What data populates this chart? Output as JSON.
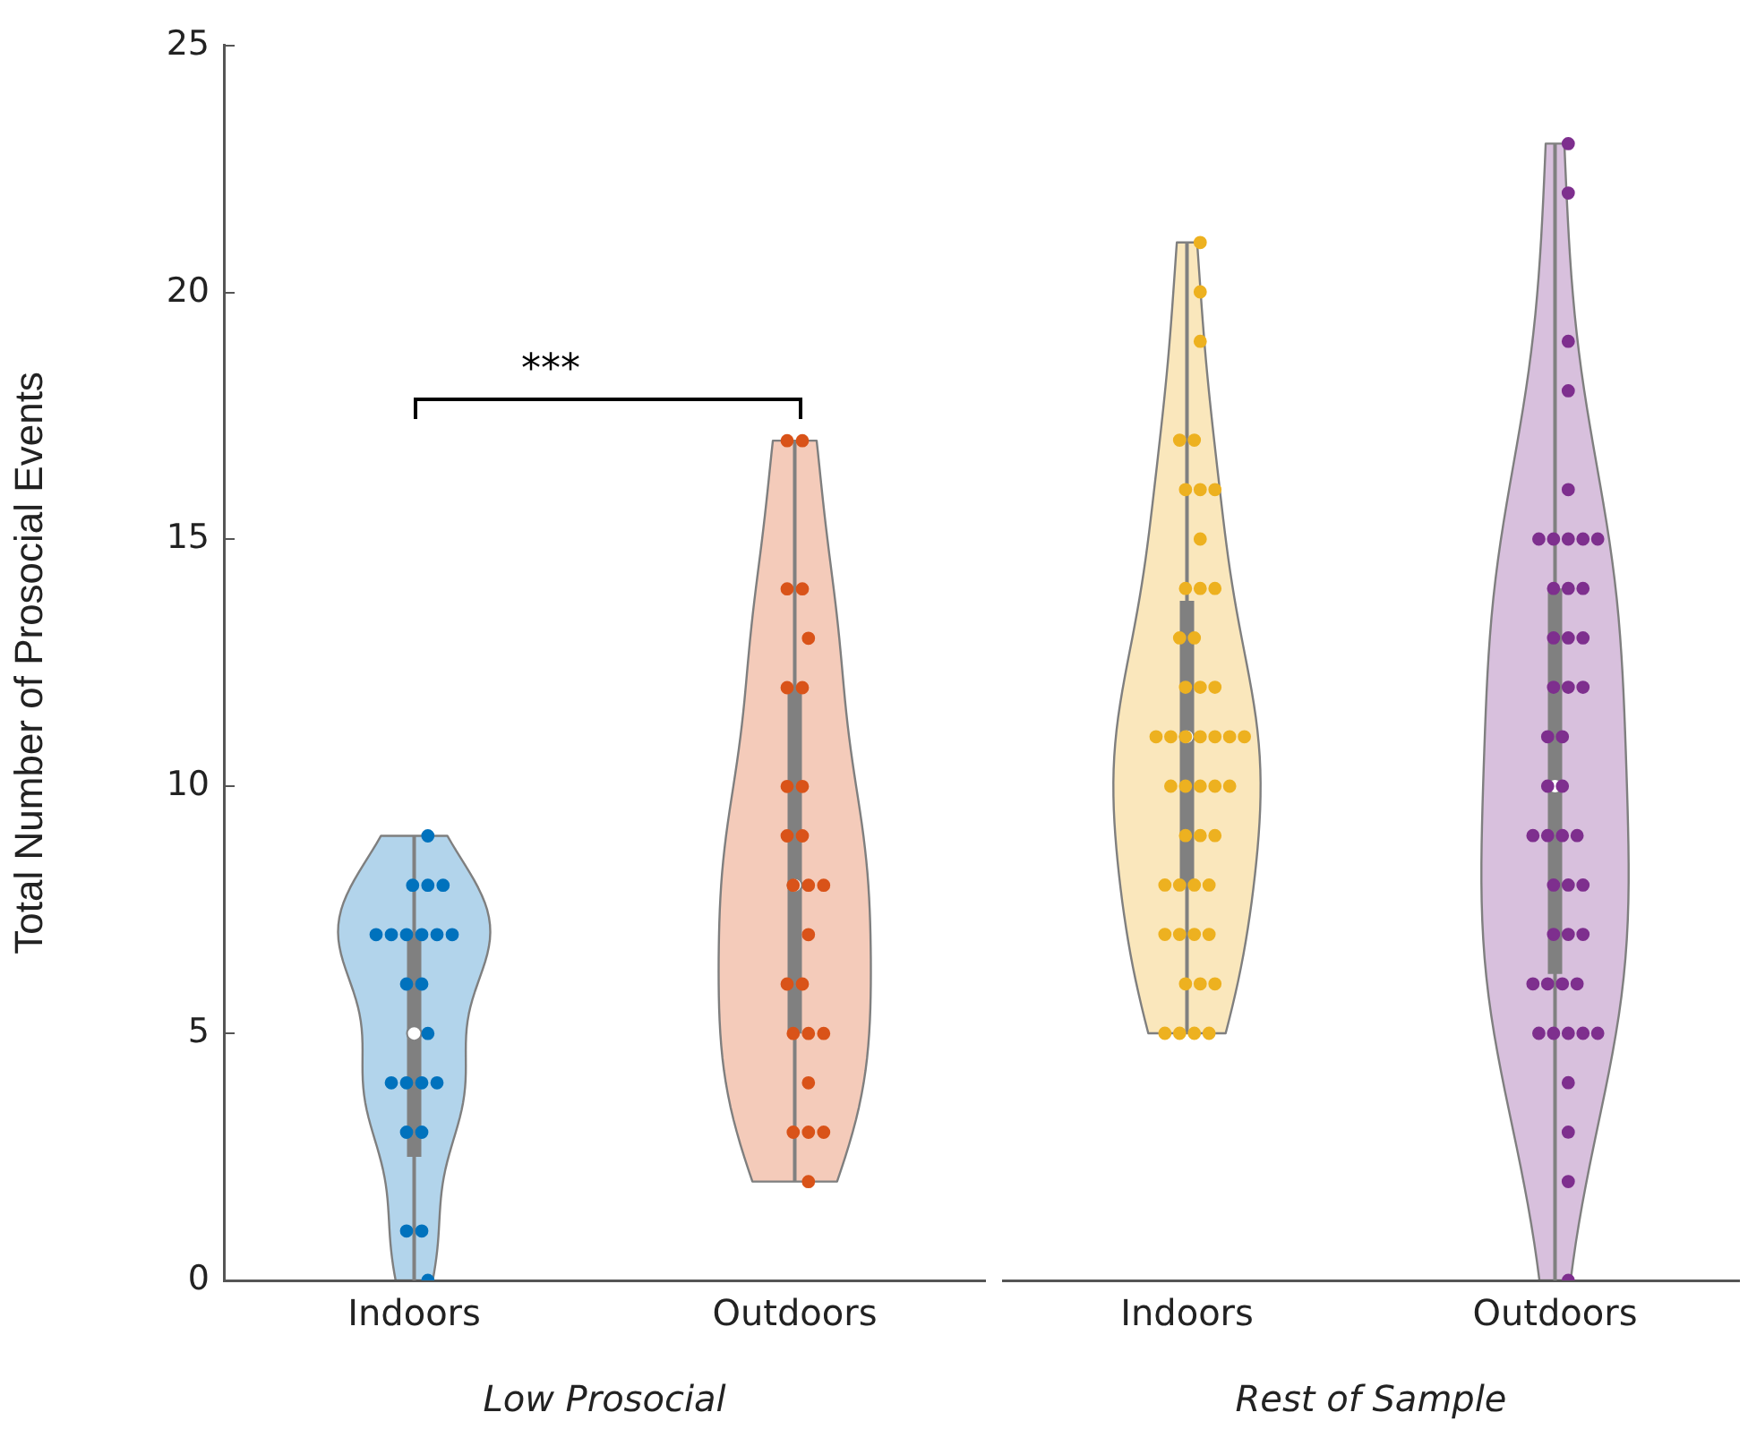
{
  "chart_data": [
    {
      "type": "box",
      "ylabel": "Total Number of Prosocial Events",
      "xlabel": "Low Prosocial",
      "categories": [
        "Indoors",
        "Outdoors"
      ],
      "colors": [
        "#808080",
        "#808080"
      ],
      "boxes": [
        {
          "low": 0,
          "q1": 2.5,
          "median": 5,
          "q3": 7,
          "high": 9
        },
        {
          "low": 2,
          "q1": 5,
          "median": 8,
          "q3": 12,
          "high": 17
        }
      ],
      "series": [
        {
          "type": "scatter",
          "color": "#0072bd",
          "x": [
            "Indoors",
            "Indoors",
            "Indoors",
            "Indoors",
            "Indoors",
            "Indoors",
            "Indoors",
            "Indoors",
            "Indoors",
            "Indoors",
            "Indoors",
            "Indoors",
            "Indoors",
            "Indoors",
            "Indoors",
            "Indoors",
            "Indoors",
            "Indoors",
            "Indoors",
            "Indoors",
            "Indoors",
            "Indoors"
          ],
          "values": [
            9,
            8,
            8,
            8,
            7,
            7,
            7,
            7,
            7,
            7,
            6,
            6,
            5,
            4,
            4,
            4,
            4,
            3,
            3,
            1,
            1,
            0
          ]
        },
        {
          "type": "scatter",
          "color": "#d95319",
          "x": [
            "Outdoors",
            "Outdoors",
            "Outdoors",
            "Outdoors",
            "Outdoors",
            "Outdoors",
            "Outdoors",
            "Outdoors",
            "Outdoors",
            "Outdoors",
            "Outdoors",
            "Outdoors",
            "Outdoors",
            "Outdoors",
            "Outdoors",
            "Outdoors",
            "Outdoors",
            "Outdoors",
            "Outdoors",
            "Outdoors",
            "Outdoors",
            "Outdoors",
            "Outdoors",
            "Outdoors",
            "Outdoors"
          ],
          "values": [
            17,
            17,
            14,
            14,
            13,
            12,
            12,
            10,
            10,
            9,
            9,
            8,
            8,
            8,
            7,
            6,
            6,
            5,
            5,
            5,
            4,
            3,
            3,
            3,
            2
          ]
        }
      ],
      "ylim": [
        0,
        25
      ],
      "yticks": [
        0,
        5,
        10,
        15,
        20,
        25
      ],
      "grid": false,
      "legend": false,
      "marker": "circle",
      "annotations": [
        "***"
      ]
    },
    {
      "type": "box",
      "xlabel": "Rest of Sample",
      "categories": [
        "Indoors",
        "Outdoors"
      ],
      "colors": [
        "#808080",
        "#808080"
      ],
      "boxes": [
        {
          "low": 5,
          "q1": 8,
          "median": 11,
          "q3": 13.75,
          "high": 21
        },
        {
          "low": 0,
          "q1": 6.2,
          "median": 10,
          "q3": 14,
          "high": 23
        }
      ],
      "series": [
        {
          "type": "scatter",
          "color": "#edb120",
          "x": [
            "Indoors",
            "Indoors",
            "Indoors",
            "Indoors",
            "Indoors",
            "Indoors",
            "Indoors",
            "Indoors",
            "Indoors",
            "Indoors",
            "Indoors",
            "Indoors",
            "Indoors",
            "Indoors",
            "Indoors",
            "Indoors",
            "Indoors",
            "Indoors",
            "Indoors",
            "Indoors",
            "Indoors",
            "Indoors",
            "Indoors",
            "Indoors",
            "Indoors",
            "Indoors",
            "Indoors",
            "Indoors",
            "Indoors",
            "Indoors",
            "Indoors",
            "Indoors",
            "Indoors",
            "Indoors",
            "Indoors",
            "Indoors",
            "Indoors",
            "Indoors",
            "Indoors",
            "Indoors",
            "Indoors",
            "Indoors",
            "Indoors",
            "Indoors",
            "Indoors",
            "Indoors",
            "Indoors"
          ],
          "values": [
            21,
            20,
            19,
            17,
            17,
            16,
            16,
            16,
            15,
            14,
            14,
            14,
            13,
            13,
            12,
            12,
            12,
            11,
            11,
            11,
            11,
            11,
            11,
            11,
            10,
            10,
            10,
            10,
            10,
            9,
            9,
            9,
            8,
            8,
            8,
            8,
            7,
            7,
            7,
            7,
            6,
            6,
            6,
            5,
            5,
            5,
            5
          ]
        },
        {
          "type": "scatter",
          "color": "#7e2f8e",
          "x": [
            "Outdoors",
            "Outdoors",
            "Outdoors",
            "Outdoors",
            "Outdoors",
            "Outdoors",
            "Outdoors",
            "Outdoors",
            "Outdoors",
            "Outdoors",
            "Outdoors",
            "Outdoors",
            "Outdoors",
            "Outdoors",
            "Outdoors",
            "Outdoors",
            "Outdoors",
            "Outdoors",
            "Outdoors",
            "Outdoors",
            "Outdoors",
            "Outdoors",
            "Outdoors",
            "Outdoors",
            "Outdoors",
            "Outdoors",
            "Outdoors",
            "Outdoors",
            "Outdoors",
            "Outdoors",
            "Outdoors",
            "Outdoors",
            "Outdoors",
            "Outdoors",
            "Outdoors",
            "Outdoors",
            "Outdoors",
            "Outdoors",
            "Outdoors",
            "Outdoors",
            "Outdoors",
            "Outdoors",
            "Outdoors",
            "Outdoors",
            "Outdoors",
            "Outdoors"
          ],
          "values": [
            23,
            22,
            19,
            18,
            16,
            15,
            15,
            15,
            15,
            15,
            14,
            14,
            14,
            13,
            13,
            13,
            12,
            12,
            12,
            11,
            11,
            10,
            10,
            9,
            9,
            9,
            9,
            8,
            8,
            8,
            7,
            7,
            7,
            6,
            6,
            6,
            6,
            5,
            5,
            5,
            5,
            5,
            4,
            3,
            2,
            0
          ]
        }
      ],
      "ylim": [
        0,
        25
      ],
      "yticks": [
        0,
        5,
        10,
        15,
        20,
        25
      ],
      "tick_labels": "x",
      "grid": false,
      "legend": false,
      "marker": "circle"
    }
  ]
}
